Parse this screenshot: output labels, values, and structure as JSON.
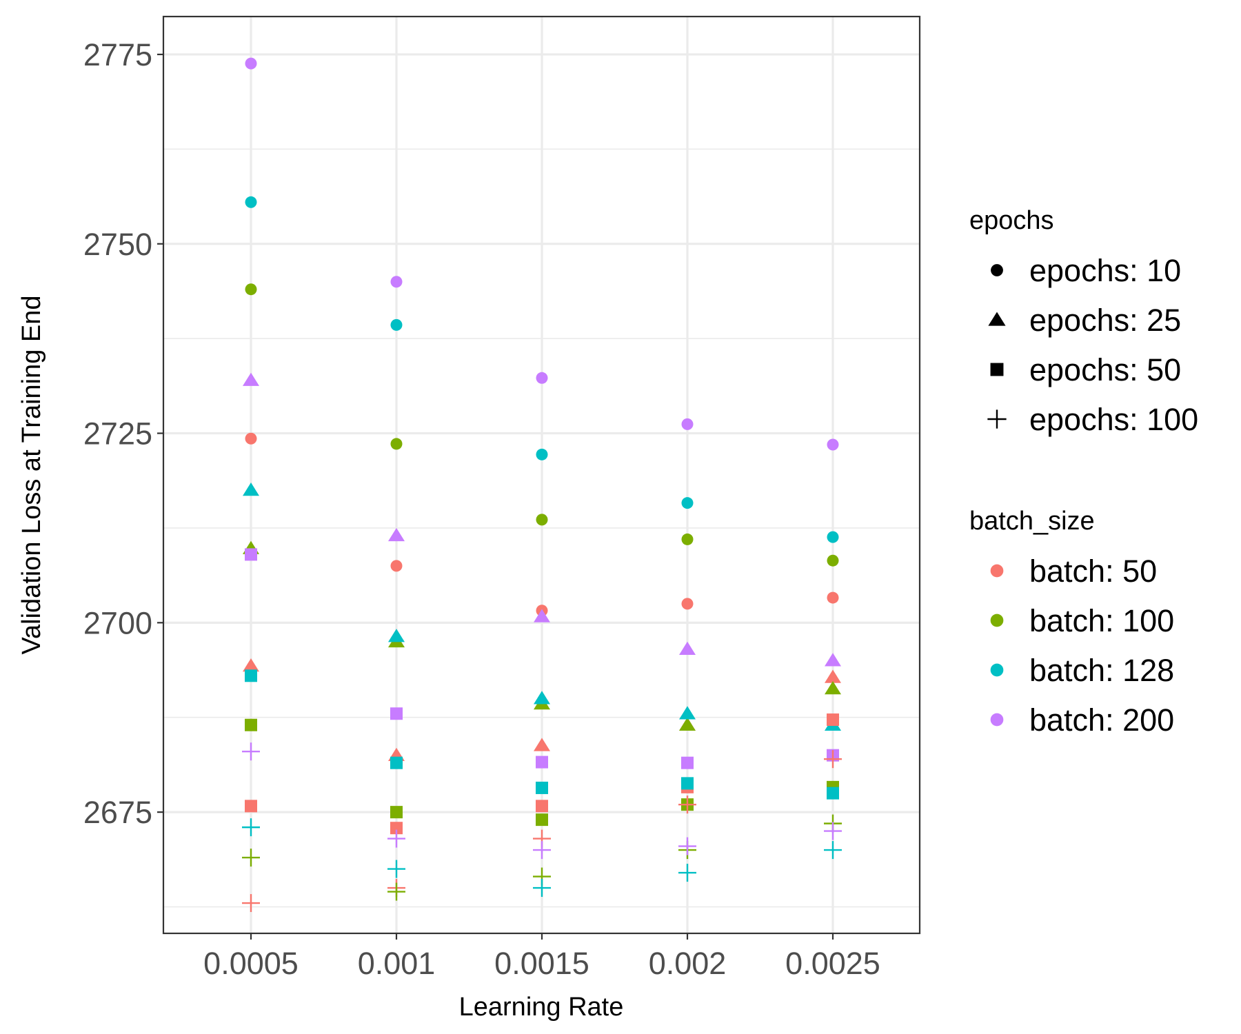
{
  "chart_data": {
    "type": "scatter",
    "title": "",
    "xlabel": "Learning Rate",
    "ylabel": "Validation Loss at Training End",
    "x_categories": [
      "0.0005",
      "0.001",
      "0.0015",
      "0.002",
      "0.0025"
    ],
    "ylim": [
      2659,
      2780
    ],
    "y_ticks": [
      2675,
      2700,
      2725,
      2750,
      2775
    ],
    "y_tick_labels": [
      "2675",
      "2700",
      "2725",
      "2750",
      "2775"
    ],
    "grid": true,
    "legend_position": "right",
    "shape_legend": {
      "title": "epochs",
      "entries": [
        {
          "key": "10",
          "label": "epochs: 10",
          "shape": "circle"
        },
        {
          "key": "25",
          "label": "epochs: 25",
          "shape": "triangle"
        },
        {
          "key": "50",
          "label": "epochs: 50",
          "shape": "square"
        },
        {
          "key": "100",
          "label": "epochs: 100",
          "shape": "plus"
        }
      ]
    },
    "color_legend": {
      "title": "batch_size",
      "entries": [
        {
          "key": "50",
          "label": "batch: 50",
          "color": "#F8766D"
        },
        {
          "key": "100",
          "label": "batch: 100",
          "color": "#7CAE00"
        },
        {
          "key": "128",
          "label": "batch: 128",
          "color": "#00BFC4"
        },
        {
          "key": "200",
          "label": "batch: 200",
          "color": "#C77CFF"
        }
      ]
    },
    "series": [
      {
        "epochs": "10",
        "batch": "50",
        "values": [
          2724.3,
          2707.5,
          2701.6,
          2702.5,
          2703.3
        ]
      },
      {
        "epochs": "10",
        "batch": "100",
        "values": [
          2744.0,
          2723.6,
          2713.6,
          2711.0,
          2708.2
        ]
      },
      {
        "epochs": "10",
        "batch": "128",
        "values": [
          2755.5,
          2739.3,
          2722.2,
          2715.8,
          2711.3
        ]
      },
      {
        "epochs": "10",
        "batch": "200",
        "values": [
          2773.8,
          2745.0,
          2732.3,
          2726.2,
          2723.5
        ]
      },
      {
        "epochs": "25",
        "batch": "50",
        "values": [
          2694.3,
          2682.5,
          2683.8,
          2686.5,
          2692.8
        ]
      },
      {
        "epochs": "25",
        "batch": "100",
        "values": [
          2709.8,
          2697.5,
          2689.3,
          2686.5,
          2691.3
        ]
      },
      {
        "epochs": "25",
        "batch": "128",
        "values": [
          2717.5,
          2698.2,
          2690.0,
          2688.0,
          2686.5
        ]
      },
      {
        "epochs": "25",
        "batch": "200",
        "values": [
          2732.0,
          2711.5,
          2700.8,
          2696.5,
          2695.0
        ]
      },
      {
        "epochs": "50",
        "batch": "50",
        "values": [
          2675.8,
          2672.9,
          2675.8,
          2678.3,
          2687.2
        ]
      },
      {
        "epochs": "50",
        "batch": "100",
        "values": [
          2686.5,
          2675.0,
          2674.0,
          2676.0,
          2678.3
        ]
      },
      {
        "epochs": "50",
        "batch": "128",
        "values": [
          2693.0,
          2681.5,
          2678.2,
          2678.8,
          2677.5
        ]
      },
      {
        "epochs": "50",
        "batch": "200",
        "values": [
          2709.0,
          2688.0,
          2681.6,
          2681.5,
          2682.5
        ]
      },
      {
        "epochs": "100",
        "batch": "50",
        "values": [
          2663.0,
          2665.0,
          2671.5,
          2676.0,
          2682.0
        ]
      },
      {
        "epochs": "100",
        "batch": "100",
        "values": [
          2669.0,
          2664.5,
          2666.5,
          2670.0,
          2673.5
        ]
      },
      {
        "epochs": "100",
        "batch": "128",
        "values": [
          2673.0,
          2667.5,
          2665.0,
          2667.0,
          2670.0
        ]
      },
      {
        "epochs": "100",
        "batch": "200",
        "values": [
          2683.0,
          2671.5,
          2670.0,
          2670.5,
          2672.5
        ]
      }
    ]
  }
}
